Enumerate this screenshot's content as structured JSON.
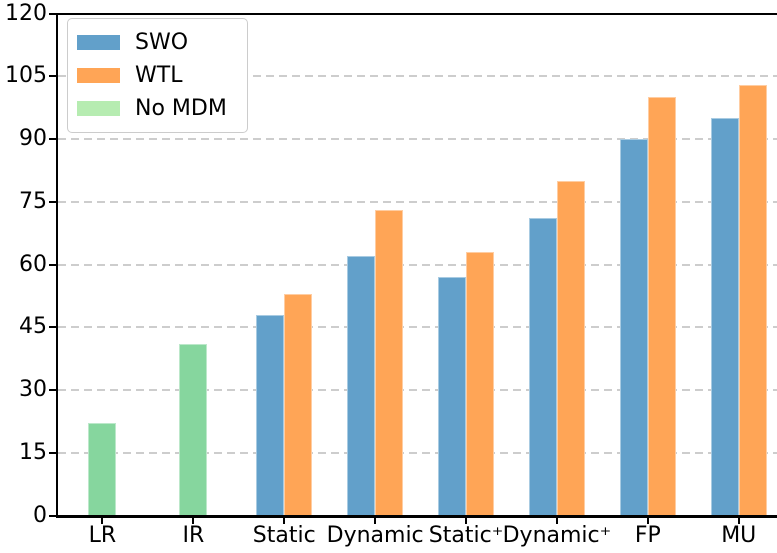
{
  "figure": {
    "background": "#ffffff",
    "axis_color": "#000000",
    "grid_color": "#cdcdcd"
  },
  "chart_data": {
    "type": "bar",
    "title": "",
    "xlabel": "",
    "ylabel": "",
    "categories": [
      "LR",
      "IR",
      "Static",
      "Dynamic",
      "Static⁺",
      "Dynamic⁺",
      "FP",
      "MU"
    ],
    "series": [
      {
        "name": "SWO",
        "color": "#62a0ca",
        "legend_color": "#62a0ca",
        "values": [
          null,
          null,
          48,
          62,
          57,
          71,
          90,
          95
        ]
      },
      {
        "name": "WTL",
        "color": "#ffa556",
        "legend_color": "#ffa556",
        "values": [
          null,
          null,
          53,
          73,
          63,
          80,
          100,
          103
        ]
      },
      {
        "name": "No MDM",
        "color": "#86d69e",
        "legend_color": "#b6ecb1",
        "values": [
          22,
          41,
          null,
          null,
          null,
          null,
          null,
          null
        ]
      }
    ],
    "ylim": [
      0,
      120
    ],
    "yticks": [
      0,
      15,
      30,
      45,
      60,
      75,
      90,
      105,
      120
    ],
    "grid": "horizontal-dashed",
    "legend_position": "upper-left"
  }
}
